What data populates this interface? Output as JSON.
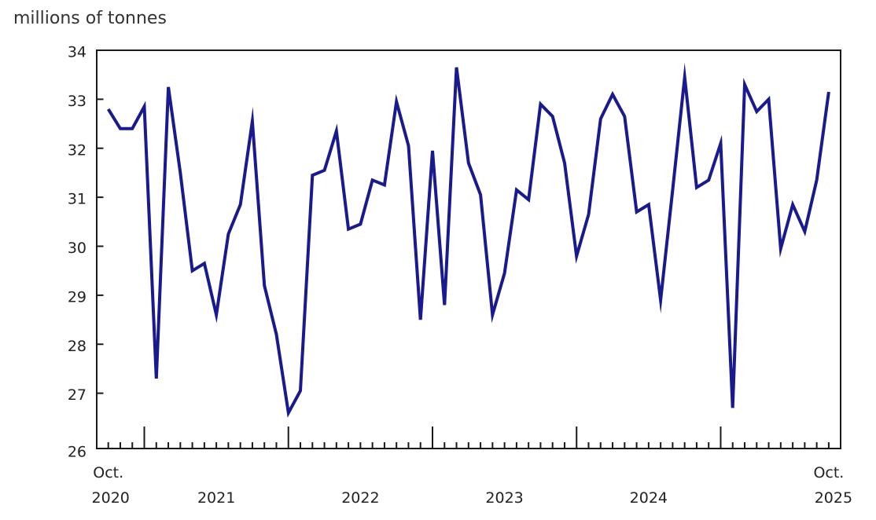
{
  "title": "millions of tonnes",
  "chart_data": {
    "type": "line",
    "title": "millions of tonnes",
    "x": [
      "2020-10",
      "2020-11",
      "2020-12",
      "2021-01",
      "2021-02",
      "2021-03",
      "2021-04",
      "2021-05",
      "2021-06",
      "2021-07",
      "2021-08",
      "2021-09",
      "2021-10",
      "2021-11",
      "2021-12",
      "2022-01",
      "2022-02",
      "2022-03",
      "2022-04",
      "2022-05",
      "2022-06",
      "2022-07",
      "2022-08",
      "2022-09",
      "2022-10",
      "2022-11",
      "2022-12",
      "2023-01",
      "2023-02",
      "2023-03",
      "2023-04",
      "2023-05",
      "2023-06",
      "2023-07",
      "2023-08",
      "2023-09",
      "2023-10",
      "2023-11",
      "2023-12",
      "2024-01",
      "2024-02",
      "2024-03",
      "2024-04",
      "2024-05",
      "2024-06",
      "2024-07",
      "2024-08",
      "2024-09",
      "2024-10",
      "2024-11",
      "2024-12",
      "2025-01",
      "2025-02",
      "2025-03",
      "2025-04",
      "2025-05",
      "2025-06",
      "2025-07",
      "2025-08",
      "2025-09",
      "2025-10"
    ],
    "values": [
      32.8,
      32.4,
      32.4,
      32.85,
      27.3,
      33.25,
      31.5,
      29.5,
      29.65,
      28.6,
      30.25,
      30.85,
      32.55,
      29.2,
      28.2,
      26.6,
      27.05,
      31.45,
      31.55,
      32.35,
      30.35,
      30.45,
      31.35,
      31.25,
      32.95,
      32.05,
      28.5,
      31.95,
      28.8,
      33.65,
      31.7,
      31.05,
      28.6,
      29.45,
      31.15,
      30.95,
      32.9,
      32.65,
      31.7,
      29.8,
      30.65,
      32.6,
      33.1,
      32.65,
      30.7,
      30.85,
      28.9,
      31.15,
      33.45,
      31.2,
      31.35,
      32.1,
      26.7,
      33.3,
      32.75,
      33.0,
      29.95,
      30.85,
      30.3,
      31.35,
      33.15
    ],
    "ylim": [
      26,
      34
    ],
    "y_axis_ticks": [
      26,
      27,
      28,
      29,
      30,
      31,
      32,
      33,
      34
    ],
    "x_axis": {
      "start_label": {
        "line1": "Oct.",
        "line2": "2020"
      },
      "year_labels": [
        "2021",
        "2022",
        "2023",
        "2024"
      ],
      "end_label": {
        "line1": "Oct.",
        "line2": "2025"
      }
    },
    "grid": false,
    "legend": "none",
    "line_color": "#1a1a8f",
    "axis_color": "#1a1a1a",
    "text_color": "#222222"
  }
}
